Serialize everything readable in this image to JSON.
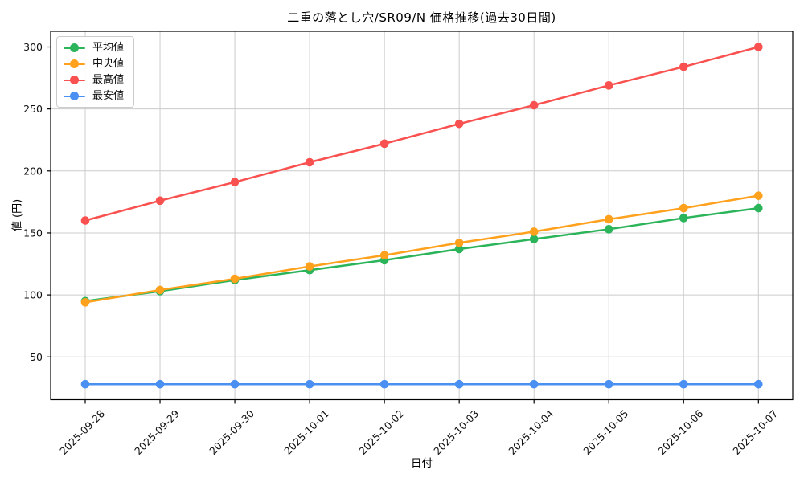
{
  "chart_data": {
    "type": "line",
    "title": "二重の落とし穴/SR09/N 価格推移(過去30日間)",
    "xlabel": "日付",
    "ylabel": "値 (円)",
    "x": [
      "2025-09-28",
      "2025-09-29",
      "2025-09-30",
      "2025-10-01",
      "2025-10-02",
      "2025-10-03",
      "2025-10-04",
      "2025-10-05",
      "2025-10-06",
      "2025-10-07"
    ],
    "yticks": [
      50,
      100,
      150,
      200,
      250,
      300
    ],
    "ylim": [
      15,
      313
    ],
    "grid": true,
    "legend_position": "upper left",
    "series": [
      {
        "name": "平均値",
        "color": "#2cb45b",
        "values": [
          95,
          103,
          112,
          120,
          128,
          137,
          145,
          153,
          162,
          170
        ]
      },
      {
        "name": "中央値",
        "color": "#ffa11d",
        "values": [
          94,
          104,
          113,
          123,
          132,
          142,
          151,
          161,
          170,
          180
        ]
      },
      {
        "name": "最高値",
        "color": "#f9514f",
        "values": [
          160,
          176,
          191,
          207,
          222,
          238,
          253,
          269,
          284,
          300
        ]
      },
      {
        "name": "最安値",
        "color": "#4a90f2",
        "values": [
          28,
          28,
          28,
          28,
          28,
          28,
          28,
          28,
          28,
          28
        ]
      }
    ],
    "colors": {
      "grid": "#cccccc",
      "spine": "#000000",
      "background": "#ffffff"
    }
  }
}
